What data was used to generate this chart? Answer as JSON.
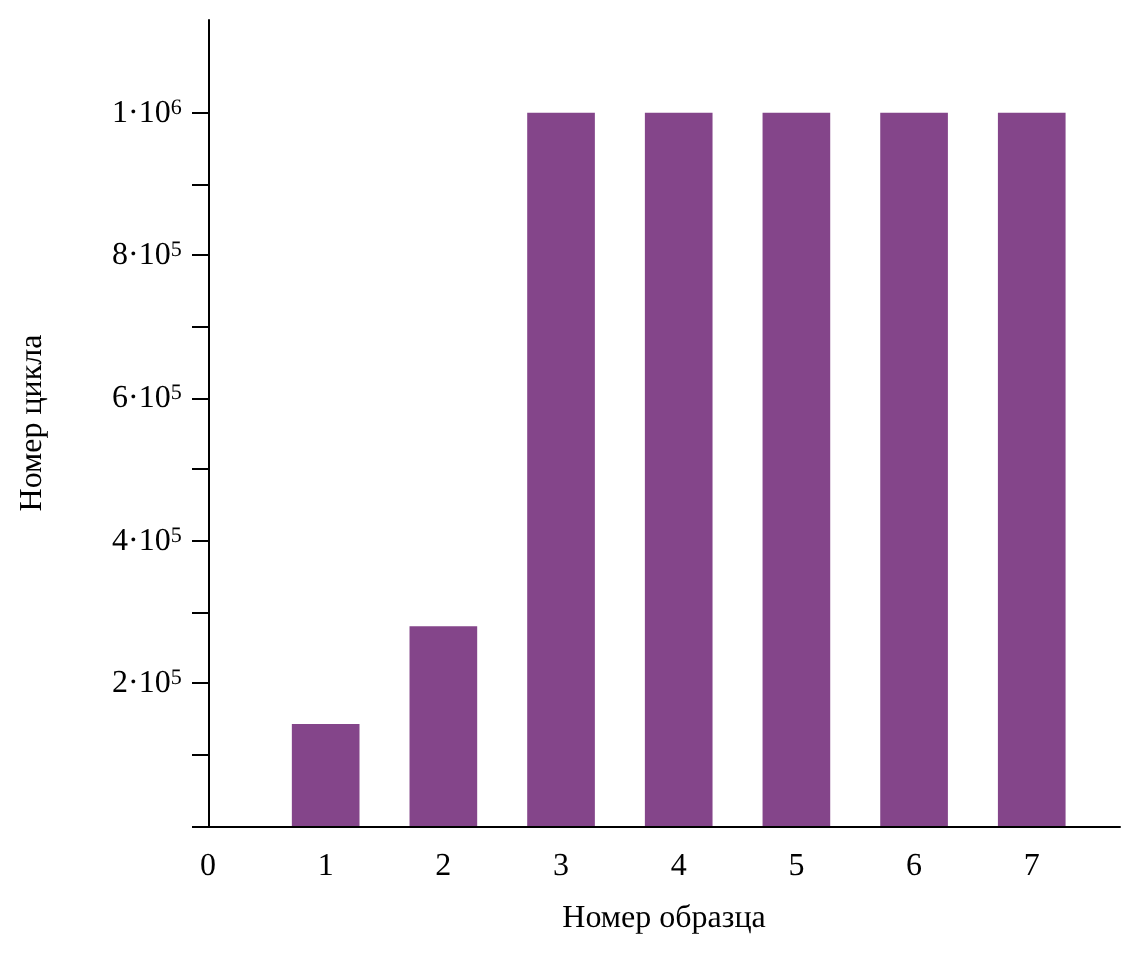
{
  "chart_data": {
    "type": "bar",
    "xlabel": "Номер образца",
    "ylabel": "Номер цикла",
    "x": [
      1,
      2,
      3,
      4,
      5,
      6,
      7
    ],
    "values": [
      143000,
      280000,
      1000000,
      1000000,
      1000000,
      1000000,
      1000000
    ],
    "color": "#84458a",
    "xlim": [
      0,
      7.75
    ],
    "xticks": [
      0,
      1,
      2,
      3,
      4,
      5,
      6,
      7
    ],
    "ylim": [
      0,
      1130000
    ],
    "yticks": [
      {
        "value": 0,
        "label": null
      },
      {
        "value": 100000,
        "label": null
      },
      {
        "value": 200000,
        "label": "2·10$^{5}$"
      },
      {
        "value": 300000,
        "label": null
      },
      {
        "value": 400000,
        "label": "4·10$^{5}$"
      },
      {
        "value": 500000,
        "label": null
      },
      {
        "value": 600000,
        "label": "6·10$^{5}$"
      },
      {
        "value": 700000,
        "label": null
      },
      {
        "value": 800000,
        "label": "8·10$^{5}$"
      },
      {
        "value": 900000,
        "label": null
      },
      {
        "value": 1000000,
        "label": "1·10$^{6}$"
      }
    ],
    "grid": false
  }
}
